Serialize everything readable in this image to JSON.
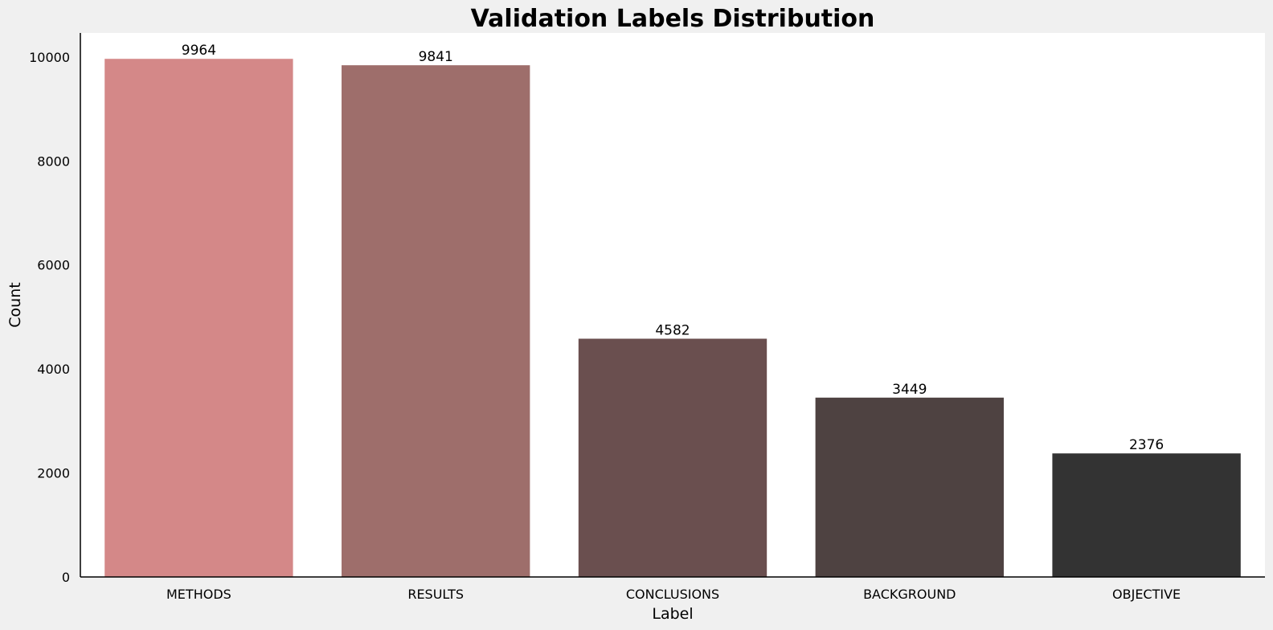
{
  "chart_data": {
    "type": "bar",
    "title": "Validation Labels Distribution",
    "xlabel": "Label",
    "ylabel": "Count",
    "categories": [
      "METHODS",
      "RESULTS",
      "CONCLUSIONS",
      "BACKGROUND",
      "OBJECTIVE"
    ],
    "values": [
      9964,
      9841,
      4582,
      3449,
      2376
    ],
    "data_labels": [
      "9964",
      "9841",
      "4582",
      "3449",
      "2376"
    ],
    "colors": [
      "#d48888",
      "#9e6e6b",
      "#6a4f4f",
      "#4e4241",
      "#333333"
    ],
    "ylim": [
      0,
      10462
    ],
    "yticks": [
      0,
      2000,
      4000,
      6000,
      8000,
      10000
    ],
    "ytick_labels": [
      "0",
      "2000",
      "4000",
      "6000",
      "8000",
      "10000"
    ],
    "grid": false,
    "legend": "none",
    "background": "#f0f0f0",
    "plot_background": "#ffffff"
  }
}
